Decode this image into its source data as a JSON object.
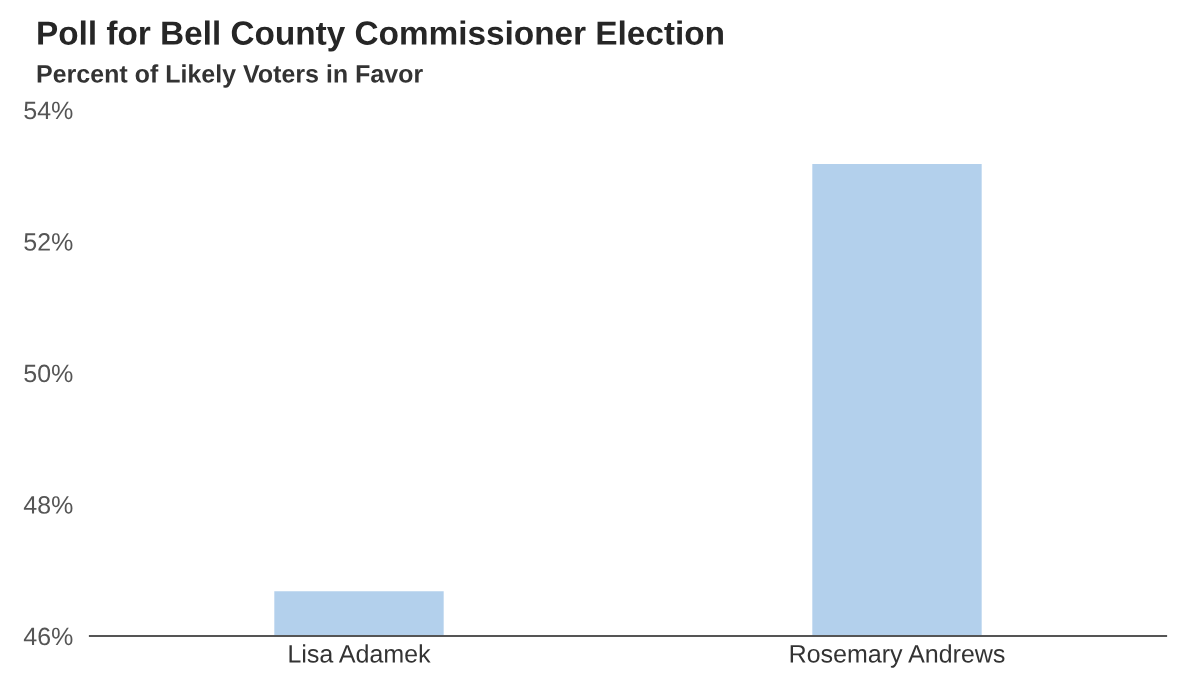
{
  "chart_data": {
    "type": "bar",
    "title": "Poll for Bell County Commissioner Election",
    "subtitle": "Percent of Likely Voters in Favor",
    "categories": [
      "Lisa Adamek",
      "Rosemary Andrews"
    ],
    "values": [
      46.7,
      53.2
    ],
    "color": "#b3d0ec",
    "ylim": [
      46,
      54
    ],
    "yticks": [
      {
        "value": 46,
        "label": "46%"
      },
      {
        "value": 48,
        "label": "48%"
      },
      {
        "value": 50,
        "label": "50%"
      },
      {
        "value": 52,
        "label": "52%"
      },
      {
        "value": 54,
        "label": "54%"
      }
    ],
    "grid": false,
    "legend": false
  }
}
